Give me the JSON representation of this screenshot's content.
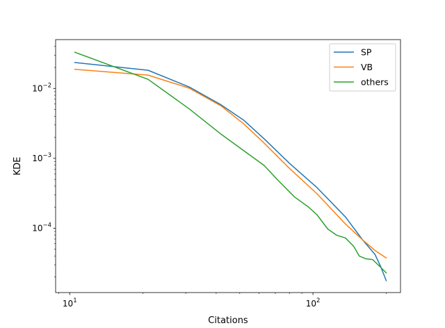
{
  "chart_data": {
    "type": "line",
    "title": "",
    "xlabel": "Citations",
    "ylabel": "KDE",
    "x_scale": "log",
    "y_scale": "log",
    "xlim": [
      8.75,
      229
    ],
    "ylim": [
      1.2e-05,
      0.05
    ],
    "grid": false,
    "legend_position": "top-right",
    "x_ticks": [
      {
        "value": 10,
        "base": "10",
        "exp": "1"
      },
      {
        "value": 100,
        "base": "10",
        "exp": "2"
      }
    ],
    "y_ticks": [
      {
        "value": 0.0001,
        "base": "10",
        "exp": "−4"
      },
      {
        "value": 0.001,
        "base": "10",
        "exp": "−3"
      },
      {
        "value": 0.01,
        "base": "10",
        "exp": "−2"
      }
    ],
    "series": [
      {
        "name": "SP",
        "color": "#1f77b4",
        "points": [
          [
            10.5,
            0.0235
          ],
          [
            21,
            0.0182
          ],
          [
            31,
            0.0105
          ],
          [
            42,
            0.0058
          ],
          [
            52,
            0.0035
          ],
          [
            63,
            0.0019
          ],
          [
            80,
            0.00085
          ],
          [
            104,
            0.00038
          ],
          [
            136,
            0.000145
          ],
          [
            160,
            6.8e-05
          ],
          [
            180,
            4.2e-05
          ],
          [
            190,
            2.8e-05
          ],
          [
            200,
            1.78e-05
          ]
        ]
      },
      {
        "name": "VB",
        "color": "#ff7f0e",
        "points": [
          [
            10.5,
            0.0188
          ],
          [
            21,
            0.0155
          ],
          [
            31,
            0.0101
          ],
          [
            42,
            0.0056
          ],
          [
            52,
            0.0031
          ],
          [
            63,
            0.00165
          ],
          [
            80,
            0.00072
          ],
          [
            104,
            0.00031
          ],
          [
            136,
            0.000115
          ],
          [
            160,
            6.8e-05
          ],
          [
            180,
            4.8e-05
          ],
          [
            200,
            3.75e-05
          ]
        ]
      },
      {
        "name": "others",
        "color": "#2ca02c",
        "points": [
          [
            10.5,
            0.033
          ],
          [
            21,
            0.0135
          ],
          [
            31,
            0.0051
          ],
          [
            42,
            0.0022
          ],
          [
            63,
            0.00079
          ],
          [
            72,
            0.00048
          ],
          [
            84,
            0.00028
          ],
          [
            96,
            0.0002
          ],
          [
            104,
            0.000155
          ],
          [
            115,
            9.75e-05
          ],
          [
            125,
            7.95e-05
          ],
          [
            136,
            7.25e-05
          ],
          [
            147,
            5.5e-05
          ],
          [
            155,
            4e-05
          ],
          [
            165,
            3.65e-05
          ],
          [
            176,
            3.55e-05
          ],
          [
            188,
            2.85e-05
          ],
          [
            200,
            2.3e-05
          ]
        ]
      }
    ]
  }
}
